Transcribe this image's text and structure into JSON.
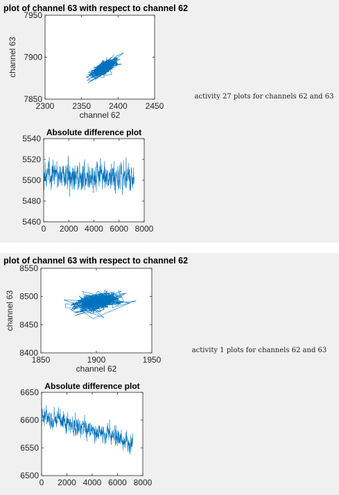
{
  "panels": [
    {
      "caption": "activity 27 plots for channels 62 and 63",
      "chart_data": [
        {
          "type": "line",
          "title": "plot of channel 63 with respect to channel 62",
          "xlabel": "channel 62",
          "ylabel": "channel 63",
          "xlim": [
            2300,
            2450
          ],
          "ylim": [
            7850,
            7950
          ],
          "xticks": [
            2300,
            2350,
            2400,
            2450
          ],
          "yticks": [
            7850,
            7900,
            7950
          ],
          "series_color": "#0072bd",
          "cloud": {
            "center": [
              2380,
              7887
            ],
            "spread": [
              14,
              9
            ],
            "correlation": 0.75,
            "x_range": [
              2340,
              2415
            ],
            "y_range": [
              7855,
              7918
            ],
            "points": 700
          }
        },
        {
          "type": "line",
          "title": "Absolute difference plot",
          "xlim": [
            0,
            8000
          ],
          "ylim": [
            5460,
            5540
          ],
          "xticks": [
            0,
            2000,
            4000,
            6000,
            8000
          ],
          "yticks": [
            5460,
            5480,
            5500,
            5520,
            5540
          ],
          "series_color": "#0072bd",
          "trace": {
            "x_range": [
              0,
              7200
            ],
            "start_level": 5505,
            "end_level": 5503,
            "noise": 8,
            "min": 5472,
            "max": 5535,
            "points": 700
          }
        }
      ]
    },
    {
      "caption": "activity 1 plots for channels 62 and 63",
      "chart_data": [
        {
          "type": "line",
          "title": "plot of channel 63 with respect to channel 62",
          "xlabel": "channel 62",
          "ylabel": "channel 63",
          "xlim": [
            1850,
            1950
          ],
          "ylim": [
            8400,
            8550
          ],
          "xticks": [
            1850,
            1900,
            1950
          ],
          "yticks": [
            8400,
            8450,
            8500,
            8550
          ],
          "series_color": "#0072bd",
          "cloud": {
            "center": [
              1900,
              8490
            ],
            "spread": [
              15,
              12
            ],
            "correlation": 0.3,
            "x_range": [
              1865,
              1945
            ],
            "y_range": [
              8440,
              8528
            ],
            "points": 700
          }
        },
        {
          "type": "line",
          "title": "Absolute difference plot",
          "xlim": [
            0,
            8000
          ],
          "ylim": [
            6500,
            6650
          ],
          "xticks": [
            0,
            2000,
            4000,
            6000,
            8000
          ],
          "yticks": [
            6500,
            6550,
            6600,
            6650
          ],
          "series_color": "#0072bd",
          "trace": {
            "x_range": [
              0,
              7200
            ],
            "start_level": 6608,
            "end_level": 6560,
            "noise": 10,
            "min": 6535,
            "max": 6628,
            "points": 700
          }
        }
      ]
    }
  ]
}
